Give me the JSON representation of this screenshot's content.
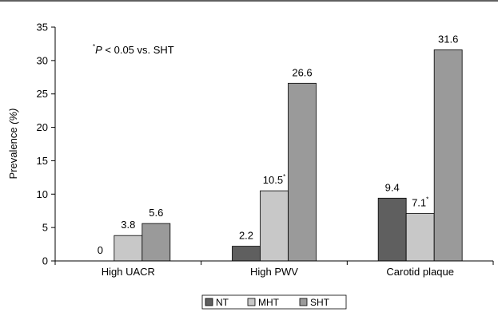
{
  "chart_data": {
    "type": "bar",
    "categories": [
      "High UACR",
      "High PWV",
      "Carotid plaque"
    ],
    "series": [
      {
        "name": "NT",
        "color": "#5f5f5f",
        "values": [
          0,
          2.2,
          9.4
        ],
        "labels": [
          "0",
          "2.2",
          "9.4"
        ],
        "starred": [
          false,
          false,
          false
        ]
      },
      {
        "name": "MHT",
        "color": "#c8c8c8",
        "values": [
          3.8,
          10.5,
          7.1
        ],
        "labels": [
          "3.8",
          "10.5",
          "7.1"
        ],
        "starred": [
          false,
          true,
          true
        ]
      },
      {
        "name": "SHT",
        "color": "#9a9a9a",
        "values": [
          5.6,
          26.6,
          31.6
        ],
        "labels": [
          "5.6",
          "26.6",
          "31.6"
        ],
        "starred": [
          false,
          false,
          false
        ]
      }
    ],
    "ylabel_main": "Prevalence ",
    "ylabel_unit": "(%)",
    "ylim": [
      0,
      35
    ],
    "yticks": [
      0,
      5,
      10,
      15,
      20,
      25,
      30,
      35
    ],
    "star_symbol": "*",
    "annotation": {
      "star": "*",
      "p": "P",
      "rest": " < 0.05 vs. SHT"
    },
    "legend_position": "bottom"
  }
}
